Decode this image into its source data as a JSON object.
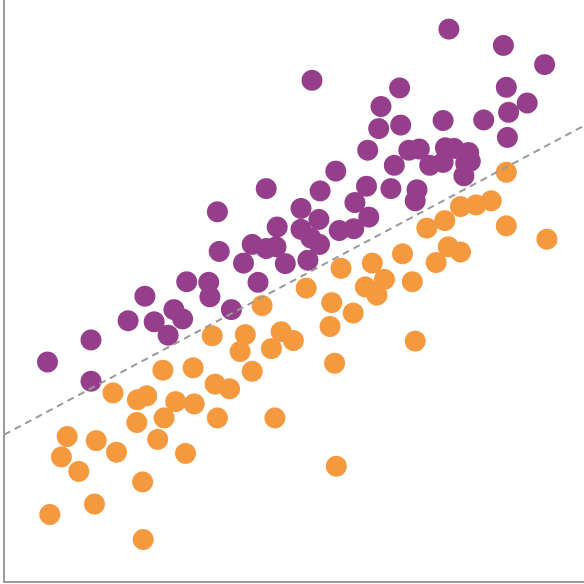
{
  "chart_data": {
    "type": "scatter",
    "title": "",
    "xlabel": "",
    "ylabel": "",
    "xlim": [
      0,
      100
    ],
    "ylim": [
      0,
      100
    ],
    "grid": false,
    "colors": {
      "purple": "#953f8c",
      "orange": "#f5993f",
      "trend": "#999999",
      "axis": "#9a9a9a"
    },
    "series": [
      {
        "points": [
          [
            7.5,
            37.8
          ],
          [
            15.0,
            41.6
          ],
          [
            15.0,
            34.5
          ],
          [
            21.4,
            44.9
          ],
          [
            24.3,
            49.1
          ],
          [
            25.9,
            44.7
          ],
          [
            28.3,
            42.4
          ],
          [
            29.3,
            46.8
          ],
          [
            30.8,
            45.2
          ],
          [
            31.5,
            51.6
          ],
          [
            35.3,
            51.5
          ],
          [
            35.5,
            49.0
          ],
          [
            36.8,
            63.6
          ],
          [
            37.1,
            56.8
          ],
          [
            39.2,
            46.8
          ],
          [
            41.3,
            54.8
          ],
          [
            42.8,
            58.0
          ],
          [
            43.8,
            51.5
          ],
          [
            45.2,
            67.6
          ],
          [
            45.2,
            57.3
          ],
          [
            46.9,
            57.6
          ],
          [
            47.1,
            61.0
          ],
          [
            48.5,
            54.7
          ],
          [
            51.2,
            60.6
          ],
          [
            51.2,
            64.2
          ],
          [
            52.4,
            55.3
          ],
          [
            52.9,
            59.1
          ],
          [
            53.1,
            86.2
          ],
          [
            54.3,
            62.3
          ],
          [
            54.4,
            58.0
          ],
          [
            54.5,
            67.2
          ],
          [
            57.8,
            60.4
          ],
          [
            57.2,
            70.6
          ],
          [
            60.3,
            60.7
          ],
          [
            60.5,
            65.2
          ],
          [
            62.5,
            68.0
          ],
          [
            62.7,
            74.2
          ],
          [
            62.9,
            62.7
          ],
          [
            64.6,
            77.9
          ],
          [
            65.0,
            81.7
          ],
          [
            66.7,
            67.6
          ],
          [
            67.3,
            71.6
          ],
          [
            68.2,
            84.9
          ],
          [
            68.4,
            78.5
          ],
          [
            69.8,
            74.2
          ],
          [
            70.9,
            65.5
          ],
          [
            71.2,
            67.4
          ],
          [
            71.6,
            74.4
          ],
          [
            73.4,
            71.6
          ],
          [
            75.7,
            72.1
          ],
          [
            75.7,
            79.3
          ],
          [
            76.1,
            74.6
          ],
          [
            76.7,
            95.0
          ],
          [
            77.6,
            74.5
          ],
          [
            79.3,
            69.8
          ],
          [
            79.6,
            71.9
          ],
          [
            80.1,
            73.8
          ],
          [
            80.4,
            72.3
          ],
          [
            82.7,
            79.4
          ],
          [
            86.1,
            92.2
          ],
          [
            86.6,
            85.0
          ],
          [
            86.8,
            76.4
          ],
          [
            87.0,
            80.7
          ],
          [
            90.2,
            82.3
          ],
          [
            93.2,
            88.9
          ]
        ]
      },
      {
        "points": [
          [
            7.9,
            11.6
          ],
          [
            9.9,
            21.5
          ],
          [
            10.9,
            25.0
          ],
          [
            12.9,
            19.0
          ],
          [
            15.6,
            13.4
          ],
          [
            15.9,
            24.3
          ],
          [
            18.8,
            32.5
          ],
          [
            19.4,
            22.3
          ],
          [
            22.9,
            27.4
          ],
          [
            23.0,
            31.3
          ],
          [
            23.9,
            17.2
          ],
          [
            24.0,
            7.3
          ],
          [
            24.6,
            32.0
          ],
          [
            26.5,
            24.5
          ],
          [
            27.4,
            36.4
          ],
          [
            27.6,
            28.2
          ],
          [
            29.6,
            31.0
          ],
          [
            31.3,
            22.1
          ],
          [
            32.6,
            36.8
          ],
          [
            32.8,
            30.6
          ],
          [
            35.9,
            42.3
          ],
          [
            36.4,
            34.0
          ],
          [
            36.8,
            28.2
          ],
          [
            38.9,
            33.2
          ],
          [
            40.7,
            39.6
          ],
          [
            41.6,
            42.5
          ],
          [
            42.8,
            36.2
          ],
          [
            44.5,
            47.5
          ],
          [
            46.1,
            40.1
          ],
          [
            46.7,
            28.2
          ],
          [
            47.8,
            43.0
          ],
          [
            49.9,
            41.5
          ],
          [
            52.1,
            50.5
          ],
          [
            56.2,
            43.9
          ],
          [
            56.5,
            48.0
          ],
          [
            57.0,
            37.6
          ],
          [
            57.3,
            19.9
          ],
          [
            58.1,
            53.9
          ],
          [
            60.2,
            46.2
          ],
          [
            62.3,
            50.7
          ],
          [
            63.5,
            54.8
          ],
          [
            64.3,
            49.3
          ],
          [
            65.6,
            52.0
          ],
          [
            68.7,
            56.4
          ],
          [
            70.4,
            51.6
          ],
          [
            70.9,
            41.4
          ],
          [
            72.9,
            60.8
          ],
          [
            74.5,
            54.9
          ],
          [
            76.0,
            62.1
          ],
          [
            76.6,
            57.6
          ],
          [
            78.7,
            56.7
          ],
          [
            78.7,
            64.5
          ],
          [
            81.4,
            64.8
          ],
          [
            84.0,
            65.5
          ],
          [
            86.6,
            70.4
          ],
          [
            86.6,
            61.2
          ],
          [
            93.6,
            58.9
          ]
        ]
      }
    ],
    "trendline": {
      "style": "dashed",
      "from": [
        0,
        25.3
      ],
      "to": [
        100,
        78.4
      ]
    }
  }
}
